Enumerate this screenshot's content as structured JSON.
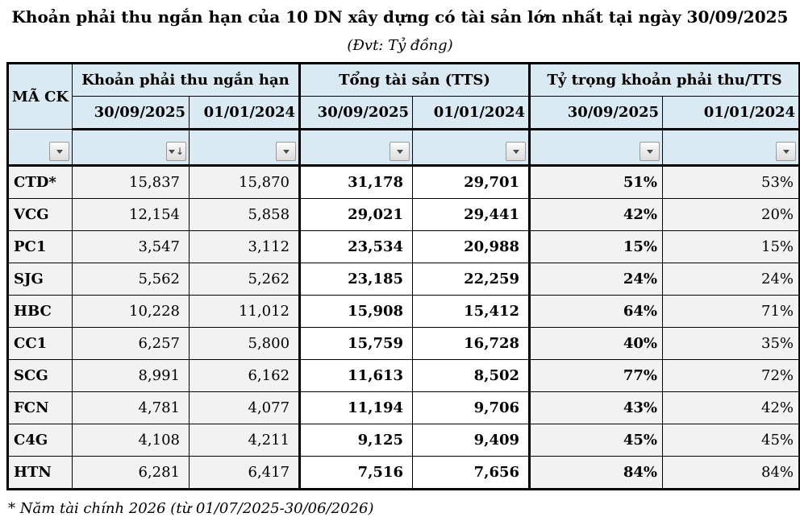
{
  "page": {
    "title": "Khoản phải thu ngắn hạn của 10 DN xây dựng có tài sản lớn nhất tại ngày 30/09/2025",
    "subtitle": "(Đvt: Tỷ đồng)",
    "footnote": "* Năm tài chính 2026 (từ 01/07/2025-30/06/2026)"
  },
  "table": {
    "corner_header": "MÃ CK",
    "groups": [
      {
        "label": "Khoản phải thu ngắn hạn"
      },
      {
        "label": "Tổng tài sản (TTS)"
      },
      {
        "label": "Tỷ trọng khoản phải thu/TTS"
      }
    ],
    "date_headers": [
      "30/09/2025",
      "01/01/2024",
      "30/09/2025",
      "01/01/2024",
      "30/09/2025",
      "01/01/2024"
    ],
    "filter_buttons": [
      {
        "icon": "filter-dropdown-icon",
        "sorted": false
      },
      {
        "icon": "filter-dropdown-sort-desc-icon",
        "sorted": true
      },
      {
        "icon": "filter-dropdown-icon",
        "sorted": false
      },
      {
        "icon": "filter-dropdown-icon",
        "sorted": false
      },
      {
        "icon": "filter-dropdown-icon",
        "sorted": false
      },
      {
        "icon": "filter-dropdown-icon",
        "sorted": false
      },
      {
        "icon": "filter-dropdown-icon",
        "sorted": false
      }
    ],
    "rows": [
      [
        "CTD*",
        "15,837",
        "15,870",
        "31,178",
        "29,701",
        "51%",
        "53%"
      ],
      [
        "VCG",
        "12,154",
        "5,858",
        "29,021",
        "29,441",
        "42%",
        "20%"
      ],
      [
        "PC1",
        "3,547",
        "3,112",
        "23,534",
        "20,988",
        "15%",
        "15%"
      ],
      [
        "SJG",
        "5,562",
        "5,262",
        "23,185",
        "22,259",
        "24%",
        "24%"
      ],
      [
        "HBC",
        "10,228",
        "11,012",
        "15,908",
        "15,412",
        "64%",
        "71%"
      ],
      [
        "CC1",
        "6,257",
        "5,800",
        "15,759",
        "16,728",
        "40%",
        "35%"
      ],
      [
        "SCG",
        "8,991",
        "6,162",
        "11,613",
        "8,502",
        "77%",
        "72%"
      ],
      [
        "FCN",
        "4,781",
        "4,077",
        "11,194",
        "9,706",
        "43%",
        "42%"
      ],
      [
        "C4G",
        "4,108",
        "4,211",
        "9,125",
        "9,409",
        "45%",
        "45%"
      ],
      [
        "HTN",
        "6,281",
        "6,417",
        "7,516",
        "7,656",
        "84%",
        "84%"
      ]
    ]
  },
  "colors": {
    "header_bg": "#d9eaf2",
    "stripe_bg": "#f2f2f2",
    "white_bg": "#ffffff",
    "border": "#000000",
    "text": "#000000"
  }
}
